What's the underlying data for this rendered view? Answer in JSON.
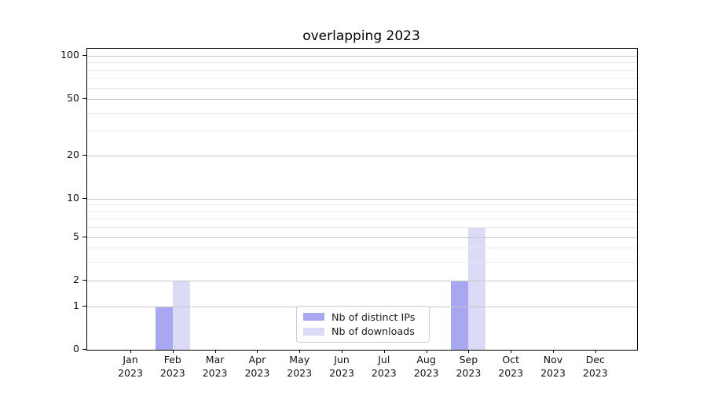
{
  "chart_data": {
    "type": "bar",
    "title": "overlapping 2023",
    "year_label": "2023",
    "categories": [
      "Jan",
      "Feb",
      "Mar",
      "Apr",
      "May",
      "Jun",
      "Jul",
      "Aug",
      "Sep",
      "Oct",
      "Nov",
      "Dec"
    ],
    "series": [
      {
        "name": "Nb of distinct IPs",
        "color": "#a8a8f2",
        "values": [
          0,
          1,
          0,
          0,
          0,
          0,
          0,
          0,
          2,
          0,
          0,
          0
        ]
      },
      {
        "name": "Nb of downloads",
        "color": "#dbdbf8",
        "values": [
          0,
          2,
          0,
          0,
          0,
          0,
          0,
          0,
          6,
          0,
          0,
          0
        ]
      }
    ],
    "yticks": [
      0,
      1,
      2,
      5,
      10,
      20,
      50,
      100
    ],
    "y_minor_gridlines": [
      3,
      4,
      6,
      7,
      8,
      9,
      30,
      40,
      60,
      70,
      80,
      90
    ],
    "ylim": [
      0,
      105
    ],
    "yscale": "symlog",
    "grid": true,
    "legend_position": "lower center",
    "colors": {
      "grid_major": "#c6c6c6",
      "grid_minor": "#ebebeb",
      "axis": "#000000",
      "text": "#111111",
      "background": "#ffffff"
    }
  }
}
